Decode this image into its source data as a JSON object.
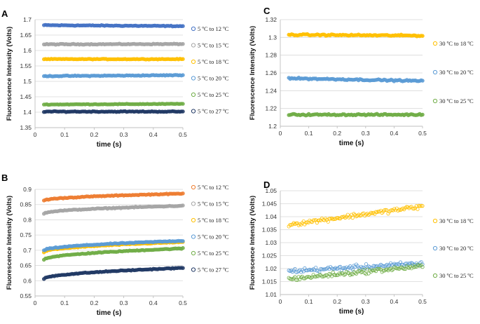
{
  "chart_data": [
    {
      "id": "A",
      "type": "scatter",
      "panel_label": "A",
      "xlabel": "time (s)",
      "ylabel": "Fluorescence Intensity (Volts)",
      "xlim": [
        0,
        0.5
      ],
      "ylim": [
        1.35,
        1.7
      ],
      "xticks": [
        0,
        0.1,
        0.2,
        0.3,
        0.4,
        0.5
      ],
      "yticks": [
        1.35,
        1.4,
        1.45,
        1.5,
        1.55,
        1.6,
        1.65,
        1.7
      ],
      "xtick_labels": [
        "0",
        "0.1",
        "0.2",
        "0.3",
        "0.4",
        "0.5"
      ],
      "ytick_labels": [
        "1.35",
        "1.4",
        "1.45",
        "1.5",
        "1.55",
        "1.6",
        "1.65",
        "1.7"
      ],
      "x_range": [
        0.03,
        0.5
      ],
      "grid": true,
      "series": [
        {
          "name": "5 ºC to 12 ºC",
          "color": "#4472C4",
          "start": 1.682,
          "end": 1.679,
          "noise": 0.002
        },
        {
          "name": "5 ºC to 15 ºC",
          "color": "#A5A5A5",
          "start": 1.62,
          "end": 1.621,
          "noise": 0.002
        },
        {
          "name": "5 ºC to 18 ºC",
          "color": "#FFC000",
          "start": 1.572,
          "end": 1.572,
          "noise": 0.0015
        },
        {
          "name": "5 ºC to 20 ºC",
          "color": "#5B9BD5",
          "start": 1.517,
          "end": 1.52,
          "noise": 0.002
        },
        {
          "name": "5 ºC to 25 ºC",
          "color": "#70AD47",
          "start": 1.425,
          "end": 1.427,
          "noise": 0.0015
        },
        {
          "name": "5 ºC to 27 ºC",
          "color": "#203864",
          "start": 1.402,
          "end": 1.402,
          "noise": 0.002
        }
      ]
    },
    {
      "id": "B",
      "type": "scatter",
      "panel_label": "B",
      "xlabel": "time (s)",
      "ylabel": "Fluorescence Intensity (Volts)",
      "xlim": [
        0,
        0.5
      ],
      "ylim": [
        0.55,
        0.9
      ],
      "xticks": [
        0,
        0.1,
        0.2,
        0.3,
        0.4,
        0.5
      ],
      "yticks": [
        0.55,
        0.6,
        0.65,
        0.7,
        0.75,
        0.8,
        0.85,
        0.9
      ],
      "xtick_labels": [
        "0",
        "0.1",
        "0.2",
        "0.3",
        "0.4",
        "0.5"
      ],
      "ytick_labels": [
        "0.55",
        "0.6",
        "0.65",
        "0.7",
        "0.75",
        "0.8",
        "0.85",
        "0.9"
      ],
      "x_range": [
        0.03,
        0.5
      ],
      "grid": true,
      "series": [
        {
          "name": "5 ºC to 12 ºC",
          "color": "#ED7D31",
          "start": 0.863,
          "end": 0.886,
          "noise": 0.002
        },
        {
          "name": "5 ºC to 15 ºC",
          "color": "#A5A5A5",
          "start": 0.821,
          "end": 0.846,
          "noise": 0.002
        },
        {
          "name": "5 ºC to 18 ºC",
          "color": "#FFC000",
          "start": 0.694,
          "end": 0.727,
          "noise": 0.002
        },
        {
          "name": "5 ºC to 20 ºC",
          "color": "#5B9BD5",
          "start": 0.699,
          "end": 0.731,
          "noise": 0.002
        },
        {
          "name": "5 ºC to 25 ºC",
          "color": "#70AD47",
          "start": 0.669,
          "end": 0.706,
          "noise": 0.002
        },
        {
          "name": "5 ºC to 27 ºC",
          "color": "#203864",
          "start": 0.606,
          "end": 0.642,
          "noise": 0.002
        }
      ]
    },
    {
      "id": "C",
      "type": "scatter",
      "panel_label": "C",
      "xlabel": "time (s)",
      "ylabel": "Fluorescence Intensity (Volts)",
      "xlim": [
        0,
        0.5
      ],
      "ylim": [
        1.2,
        1.32
      ],
      "xticks": [
        0,
        0.1,
        0.2,
        0.3,
        0.4,
        0.5
      ],
      "yticks": [
        1.2,
        1.22,
        1.24,
        1.26,
        1.28,
        1.3,
        1.32
      ],
      "xtick_labels": [
        "0",
        "0.1",
        "0.2",
        "0.3",
        "0.4",
        "0.5"
      ],
      "ytick_labels": [
        "1.2",
        "1.22",
        "1.24",
        "1.26",
        "1.28",
        "1.3",
        "1.32"
      ],
      "x_range": [
        0.03,
        0.5
      ],
      "grid": true,
      "series": [
        {
          "name": "30 ºC to 18 ºC",
          "color": "#FFC000",
          "start": 1.303,
          "end": 1.302,
          "noise": 0.0012
        },
        {
          "name": "30 ºC to 20 ºC",
          "color": "#5B9BD5",
          "start": 1.254,
          "end": 1.251,
          "noise": 0.0012
        },
        {
          "name": "30 ºC to 25 ºC",
          "color": "#70AD47",
          "start": 1.213,
          "end": 1.213,
          "noise": 0.0012
        }
      ]
    },
    {
      "id": "D",
      "type": "scatter",
      "panel_label": "D",
      "xlabel": "time (s)",
      "ylabel": "Fluorescence Intensity (Volts)",
      "xlim": [
        0,
        0.5
      ],
      "ylim": [
        1.01,
        1.05
      ],
      "xticks": [
        0,
        0.1,
        0.2,
        0.3,
        0.4,
        0.5
      ],
      "yticks": [
        1.01,
        1.015,
        1.02,
        1.025,
        1.03,
        1.035,
        1.04,
        1.045,
        1.05
      ],
      "xtick_labels": [
        "0",
        "0.1",
        "0.2",
        "0.3",
        "0.4",
        "0.5"
      ],
      "ytick_labels": [
        "1.01",
        "1.015",
        "1.02",
        "1.025",
        "1.03",
        "1.035",
        "1.04",
        "1.045",
        "1.05"
      ],
      "x_range": [
        0.03,
        0.5
      ],
      "grid": true,
      "series": [
        {
          "name": "30 ºC to 18 ºC",
          "color": "#FFC000",
          "start": 1.037,
          "end": 1.044,
          "noise": 0.0012
        },
        {
          "name": "30 ºC to 20 ºC",
          "color": "#5B9BD5",
          "start": 1.019,
          "end": 1.022,
          "noise": 0.0013
        },
        {
          "name": "30 ºC to 25 ºC",
          "color": "#70AD47",
          "start": 1.016,
          "end": 1.021,
          "noise": 0.0012
        }
      ]
    }
  ]
}
